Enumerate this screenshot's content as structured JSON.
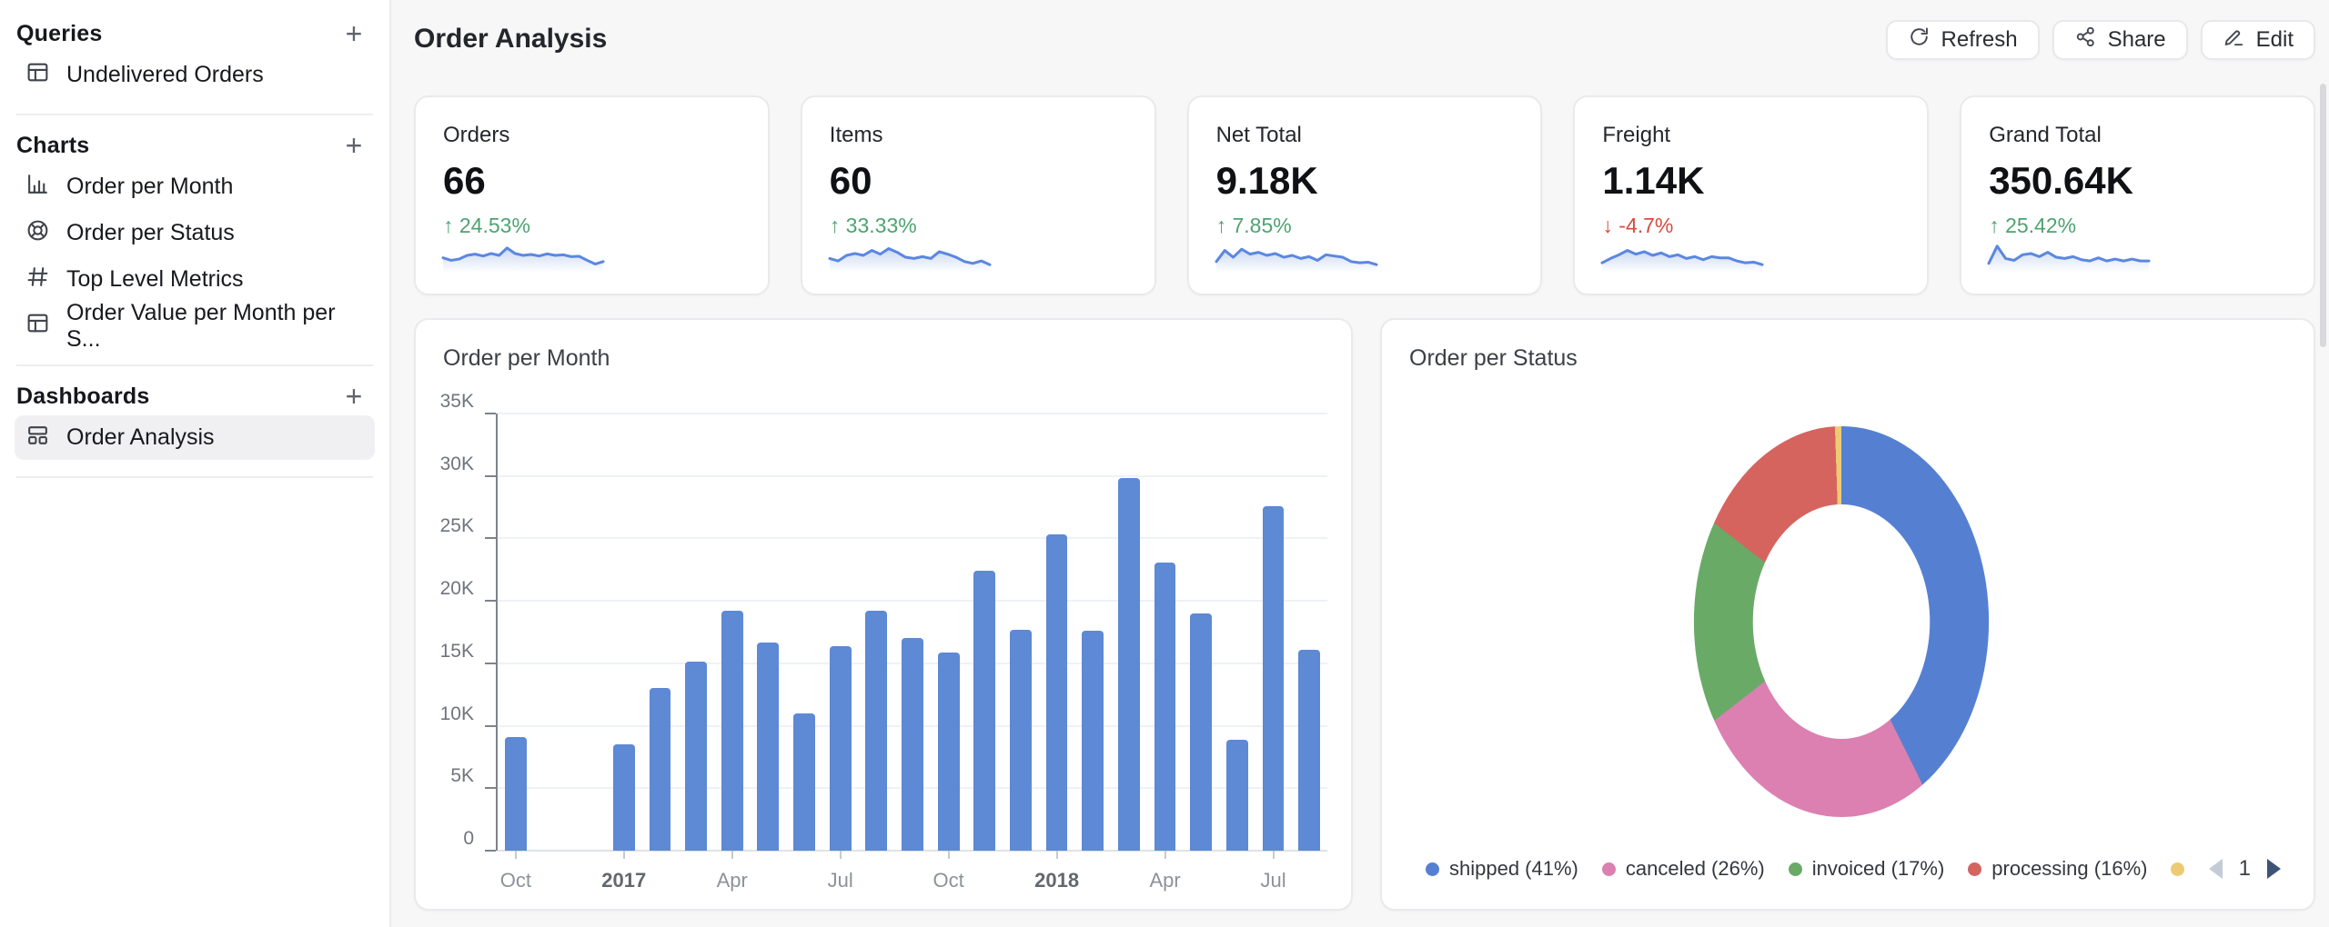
{
  "sidebar": {
    "add_label": "+",
    "sections": [
      {
        "title": "Queries",
        "items": [
          {
            "label": "Undelivered Orders",
            "icon": "table",
            "selected": false
          }
        ]
      },
      {
        "title": "Charts",
        "items": [
          {
            "label": "Order per Month",
            "icon": "bar-chart",
            "selected": false
          },
          {
            "label": "Order per Status",
            "icon": "donut",
            "selected": false
          },
          {
            "label": "Top Level Metrics",
            "icon": "hash",
            "selected": false
          },
          {
            "label": "Order Value per Month per S...",
            "icon": "table",
            "selected": false
          }
        ]
      },
      {
        "title": "Dashboards",
        "items": [
          {
            "label": "Order Analysis",
            "icon": "dashboard",
            "selected": true
          }
        ]
      }
    ]
  },
  "header": {
    "title": "Order Analysis",
    "refresh_label": "Refresh",
    "share_label": "Share",
    "edit_label": "Edit"
  },
  "glyphs": {
    "up": "↑",
    "down": "↓"
  },
  "kpi_cards": [
    {
      "label": "Orders",
      "value": "66",
      "delta": "24.53%",
      "direction": "up",
      "sparkline": [
        4.2,
        3.4,
        3.8,
        5,
        5.4,
        4.8,
        5.6,
        5,
        7.4,
        5.6,
        5,
        5.3,
        4.8,
        5.5,
        5,
        5.2,
        4.6,
        4.7,
        3.4,
        2.2,
        3
      ]
    },
    {
      "label": "Items",
      "value": "60",
      "delta": "33.33%",
      "direction": "up",
      "sparkline": [
        4,
        3.2,
        5,
        5.6,
        5,
        6.6,
        5.4,
        7.2,
        6,
        4.4,
        4,
        4.6,
        4,
        6.2,
        5.4,
        4.4,
        3,
        2.4,
        3.2,
        2
      ]
    },
    {
      "label": "Net Total",
      "value": "9.18K",
      "delta": "7.85%",
      "direction": "up",
      "sparkline": [
        3,
        6.6,
        4.4,
        7,
        5.4,
        6,
        5,
        5.6,
        4.4,
        5,
        4,
        4.6,
        3.4,
        5.2,
        4.8,
        4.4,
        3,
        2.6,
        2.8,
        2
      ]
    },
    {
      "label": "Freight",
      "value": "1.14K",
      "delta": "-4.7%",
      "direction": "down",
      "sparkline": [
        2.6,
        4,
        5.2,
        6.6,
        5.4,
        6.2,
        5,
        5.8,
        4.6,
        5.2,
        4,
        4.6,
        3.6,
        4.6,
        4.2,
        4.2,
        3.2,
        2.6,
        2.8,
        2
      ]
    },
    {
      "label": "Grand Total",
      "value": "350.64K",
      "delta": "25.42%",
      "direction": "up",
      "sparkline": [
        2.4,
        8,
        4,
        3.4,
        5.2,
        5.6,
        4.6,
        6,
        4.4,
        4,
        4.6,
        3.6,
        3.2,
        4.2,
        3.2,
        3.8,
        3.2,
        3.8,
        3.2,
        3.2
      ]
    }
  ],
  "chart_data": [
    {
      "type": "bar",
      "title": "Order per Month",
      "ylabel": "",
      "xlabel": "",
      "ylim": [
        0,
        35000
      ],
      "y_ticks": [
        "0",
        "5K",
        "10K",
        "15K",
        "20K",
        "25K",
        "30K",
        "35K"
      ],
      "grid": true,
      "slots": 23,
      "bars": [
        {
          "slot": 0,
          "value": 9100
        },
        {
          "slot": 3,
          "value": 8500
        },
        {
          "slot": 4,
          "value": 13000
        },
        {
          "slot": 5,
          "value": 15100
        },
        {
          "slot": 6,
          "value": 19200
        },
        {
          "slot": 7,
          "value": 16700
        },
        {
          "slot": 8,
          "value": 11000
        },
        {
          "slot": 9,
          "value": 16400
        },
        {
          "slot": 10,
          "value": 19200
        },
        {
          "slot": 11,
          "value": 17000
        },
        {
          "slot": 12,
          "value": 15900
        },
        {
          "slot": 13,
          "value": 22400
        },
        {
          "slot": 14,
          "value": 17700
        },
        {
          "slot": 15,
          "value": 25300
        },
        {
          "slot": 16,
          "value": 17600
        },
        {
          "slot": 17,
          "value": 29800
        },
        {
          "slot": 18,
          "value": 23100
        },
        {
          "slot": 19,
          "value": 19000
        },
        {
          "slot": 20,
          "value": 8900
        },
        {
          "slot": 21,
          "value": 27600
        },
        {
          "slot": 22,
          "value": 16100
        }
      ],
      "x_ticks": [
        {
          "label": "Oct",
          "slot": 0,
          "bold": false
        },
        {
          "label": "2017",
          "slot": 3,
          "bold": true
        },
        {
          "label": "Apr",
          "slot": 6,
          "bold": false
        },
        {
          "label": "Jul",
          "slot": 9,
          "bold": false
        },
        {
          "label": "Oct",
          "slot": 12,
          "bold": false
        },
        {
          "label": "2018",
          "slot": 15,
          "bold": true
        },
        {
          "label": "Apr",
          "slot": 18,
          "bold": false
        },
        {
          "label": "Jul",
          "slot": 21,
          "bold": false
        }
      ],
      "bar_color": "#5d89d5"
    },
    {
      "type": "pie",
      "title": "Order per Status",
      "donut": true,
      "legend_position": "bottom",
      "segments": [
        {
          "label": "shipped (41%)",
          "pct": 41,
          "color": "#5580d2"
        },
        {
          "label": "canceled (26%)",
          "pct": 26,
          "color": "#db80b0"
        },
        {
          "label": "invoiced (17%)",
          "pct": 17,
          "color": "#69aa67"
        },
        {
          "label": "processing (16%)",
          "pct": 16,
          "color": "#d5645f"
        },
        {
          "label": "",
          "pct": 0.7,
          "color": "#eccb74"
        }
      ],
      "pagination": {
        "page": "1"
      }
    }
  ],
  "colors": {
    "spark_line": "#5b87e0",
    "bar": "#5d89d5",
    "delta_up": "#4da371",
    "delta_down": "#d9493f"
  }
}
